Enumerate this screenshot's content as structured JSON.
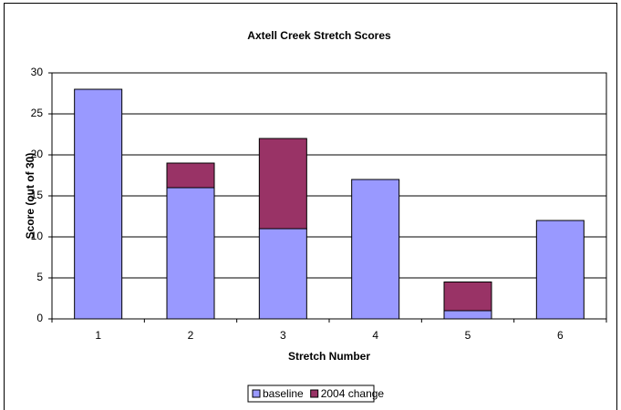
{
  "chart_data": {
    "type": "stacked_bar",
    "title": "Axtell Creek Stretch Scores",
    "x_label": "Stretch Number",
    "y_label": "Score (out of 30)",
    "categories": [
      "1",
      "2",
      "3",
      "4",
      "5",
      "6"
    ],
    "series": [
      {
        "name": "baseline",
        "color": "#9999ff",
        "values": [
          28,
          16,
          11,
          17,
          1,
          12
        ]
      },
      {
        "name": "2004 change",
        "color": "#993366",
        "values": [
          0,
          3,
          11,
          0,
          3.5,
          0
        ]
      }
    ],
    "ylim": [
      0,
      30
    ],
    "yticks": [
      0,
      5,
      10,
      15,
      20,
      25,
      30
    ],
    "grid": true,
    "legend": "bottom"
  }
}
